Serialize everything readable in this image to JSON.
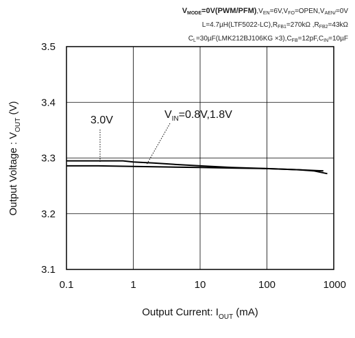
{
  "conditions": {
    "line1_bold": "V",
    "line1_bold_sub": "MODE",
    "line1_bold_rest": "=0V(PWM/PFM)",
    "line1_rest": ",V",
    "line1_en_sub": "EN",
    "line1_en_val": "=6V,V",
    "line1_fo_sub": "FO",
    "line1_fo_val": "=OPEN,V",
    "line1_aen_sub": "AEN/",
    "line1_aen_val": "=0V",
    "line2_a": "L=4.7µH(LTF5022-LC),R",
    "line2_fb1_sub": "FB1",
    "line2_b": "=270kΩ ,R",
    "line2_fb2_sub": "FB2",
    "line2_c": "=43kΩ",
    "line3_a": "C",
    "line3_l_sub": "L",
    "line3_b": "=30µF(LMK212BJ106KG ×3),C",
    "line3_fb_sub": "FB",
    "line3_c": "=12pF,C",
    "line3_in_sub": "IN",
    "line3_d": "=10µF"
  },
  "annotations": {
    "vin_low": "3.0V",
    "vin_high_main": "V",
    "vin_high_sub": "IN",
    "vin_high_rest": "=0.8V,1.8V"
  },
  "chart_data": {
    "type": "line",
    "xscale": "log",
    "xlim": [
      0.1,
      1000
    ],
    "ylim": [
      3.1,
      3.5
    ],
    "xticks": [
      "0.1",
      "1",
      "10",
      "100",
      "1000"
    ],
    "yticks": [
      "3.1",
      "3.2",
      "3.3",
      "3.4",
      "3.5"
    ],
    "xlabel": "Output Current: I",
    "xlabel_sub": "OUT",
    "xlabel_unit": " (mA)",
    "ylabel": "Output Voltage : V",
    "ylabel_sub": "OUT",
    "ylabel_unit": " (V)",
    "grid": true,
    "series": [
      {
        "name": "3.0V",
        "x": [
          0.1,
          0.3,
          0.7,
          1,
          2,
          5,
          10,
          30,
          100,
          300,
          700
        ],
        "y": [
          3.295,
          3.295,
          3.295,
          3.293,
          3.291,
          3.288,
          3.286,
          3.283,
          3.281,
          3.279,
          3.277
        ],
        "color": "#000000"
      },
      {
        "name": "VIN=0.8V,1.8V",
        "x": [
          0.1,
          0.3,
          1,
          3,
          10,
          30,
          100,
          300,
          500,
          800
        ],
        "y": [
          3.286,
          3.286,
          3.285,
          3.284,
          3.283,
          3.282,
          3.281,
          3.279,
          3.277,
          3.272
        ],
        "color": "#000000"
      }
    ]
  }
}
